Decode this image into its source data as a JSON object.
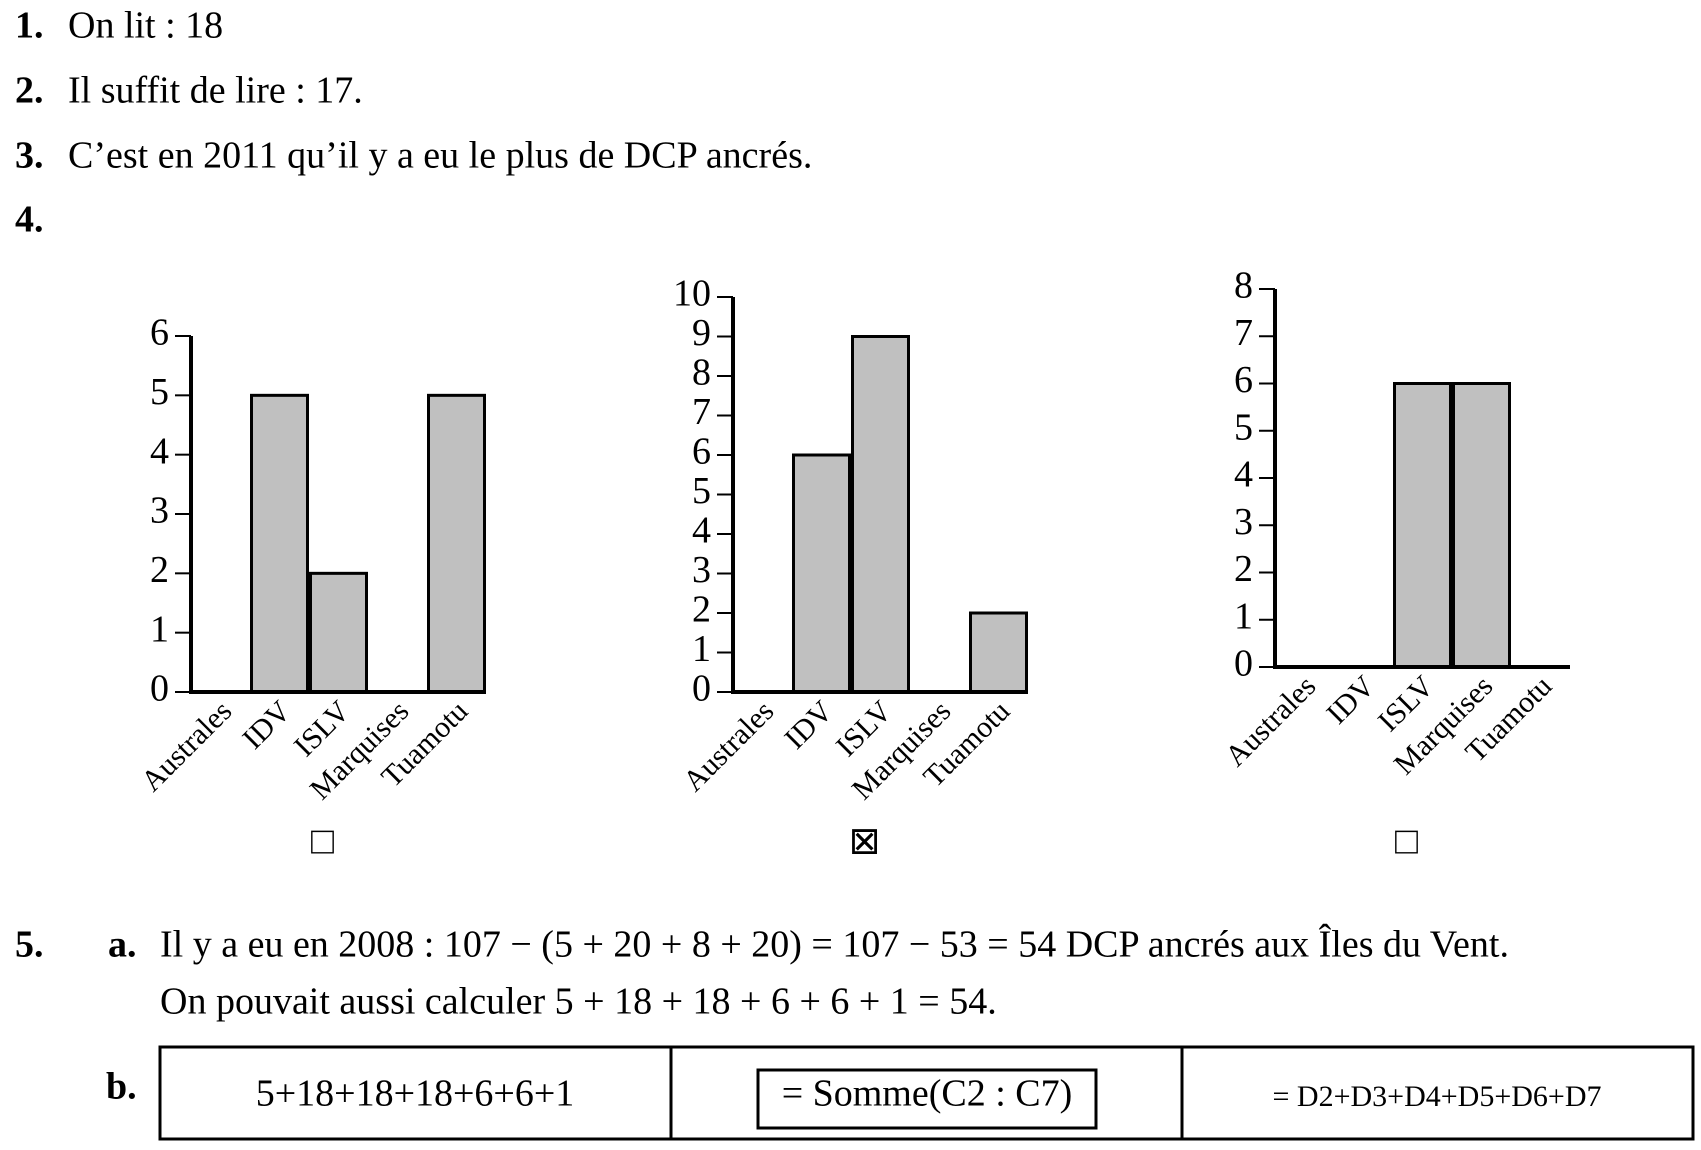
{
  "items": [
    {
      "number": "1.",
      "text": "On lit : 18"
    },
    {
      "number": "2.",
      "text": "Il suffit de lire : 17."
    },
    {
      "number": "3.",
      "text": "C’est en 2011 qu’il y a eu le plus de DCP ancrés."
    },
    {
      "number": "4."
    }
  ],
  "chart_data": [
    {
      "type": "bar",
      "categories": [
        "Australes",
        "IDV",
        "ISLV",
        "Marquises",
        "Tuamotu"
      ],
      "values": [
        0,
        5,
        2,
        0,
        5
      ],
      "color": "#c0c0c0",
      "ylim": [
        0,
        6
      ],
      "yticks": [
        0,
        1,
        2,
        3,
        4,
        5,
        6
      ],
      "checkbox": "□"
    },
    {
      "type": "bar",
      "categories": [
        "Australes",
        "IDV",
        "ISLV",
        "Marquises",
        "Tuamotu"
      ],
      "values": [
        0,
        6,
        9,
        0,
        2
      ],
      "color": "#c0c0c0",
      "ylim": [
        0,
        10
      ],
      "yticks": [
        0,
        1,
        2,
        3,
        4,
        5,
        6,
        7,
        8,
        9,
        10
      ],
      "checkbox": "⊠"
    },
    {
      "type": "bar",
      "categories": [
        "Australes",
        "IDV",
        "ISLV",
        "Marquises",
        "Tuamotu"
      ],
      "values": [
        0,
        0,
        6,
        6,
        0
      ],
      "color": "#c0c0c0",
      "ylim": [
        0,
        8
      ],
      "yticks": [
        0,
        1,
        2,
        3,
        4,
        5,
        6,
        7,
        8
      ],
      "checkbox": "□"
    }
  ],
  "question5": {
    "number": "5.",
    "part_a": {
      "label": "a.",
      "lines": [
        "Il y a eu en 2008 : 107 − (5 + 20 + 8 + 20) = 107 − 53 = 54 DCP ancrés aux Îles du Vent.",
        "On pouvait aussi calculer 5 + 18 + 18 + 6 + 6 + 1 = 54."
      ]
    },
    "part_b": {
      "label": "b.",
      "cells": [
        "5+18+18+18+6+6+1",
        "= Somme(C2 : C7)",
        "= D2+D3+D4+D5+D6+D7"
      ]
    }
  }
}
